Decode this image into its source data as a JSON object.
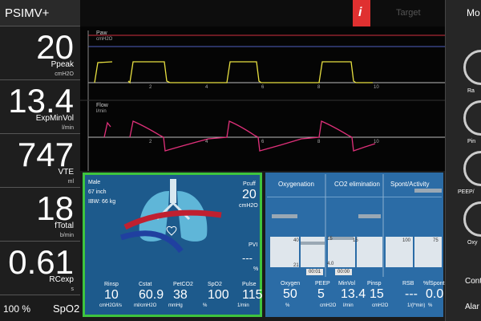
{
  "mode": "PSIMV+",
  "left_params": [
    {
      "value": "20",
      "label": "Ppeak",
      "unit": "cmH2O"
    },
    {
      "value": "13.4",
      "label": "ExpMinVol",
      "unit": "l/min"
    },
    {
      "value": "747",
      "label": "VTE",
      "unit": "ml"
    },
    {
      "value": "18",
      "label": "fTotal",
      "unit": "b/min"
    },
    {
      "value": "0.61",
      "label": "RCexp",
      "unit": "s"
    }
  ],
  "left_bottom": {
    "value": "100 %",
    "label": "SpO2"
  },
  "top_bar": {
    "info": "i",
    "target": "Target",
    "right": "Mo"
  },
  "waveforms": {
    "paw_label": "Paw",
    "paw_unit": "cmH2O",
    "flow_label": "Flow",
    "flow_unit": "l/min",
    "x_ticks": [
      "2",
      "4",
      "6",
      "8",
      "10"
    ]
  },
  "patient": {
    "sex": "Male",
    "height": "67 inch",
    "ibw": "IBW: 66 kg",
    "pcuff_label": "Pcuff",
    "pcuff_value": "20",
    "pcuff_unit": "cmH2O",
    "pvi_label": "PVI",
    "pvi_value": "---",
    "pvi_unit": "%",
    "params": [
      {
        "label": "Rinsp",
        "value": "10",
        "unit": "cmH2O/l/s"
      },
      {
        "label": "Cstat",
        "value": "60.9",
        "unit": "ml/cmH2O"
      },
      {
        "label": "PetCO2",
        "value": "38",
        "unit": "mmHg"
      },
      {
        "label": "SpO2",
        "value": "100",
        "unit": "%"
      },
      {
        "label": "Pulse",
        "value": "115",
        "unit": "1/min"
      }
    ]
  },
  "panels": {
    "titles": [
      "Oxygenation",
      "CO2 elimination",
      "Spont/Activity"
    ],
    "scale_labels": [
      "40",
      "21",
      "15",
      "4.0",
      "15",
      "100",
      "75"
    ],
    "timers": [
      "00:01",
      "00:00"
    ],
    "params": [
      {
        "label": "Oxygen",
        "value": "50",
        "unit": "%"
      },
      {
        "label": "PEEP",
        "value": "5",
        "unit": "cmH2O"
      },
      {
        "label": "MinVol",
        "value": "13.4",
        "unit": "l/min"
      },
      {
        "label": "Pinsp",
        "value": "15",
        "unit": "cmH2O"
      },
      {
        "label": "RSB",
        "value": "---",
        "unit": "1/(l*min)"
      },
      {
        "label": "%fSpont",
        "value": "0.0",
        "unit": "%"
      }
    ]
  },
  "right_side": {
    "items": [
      "Ra",
      "Pin",
      "PEEP/",
      "Oxy"
    ],
    "buttons": [
      "Cont",
      "Alar"
    ]
  }
}
